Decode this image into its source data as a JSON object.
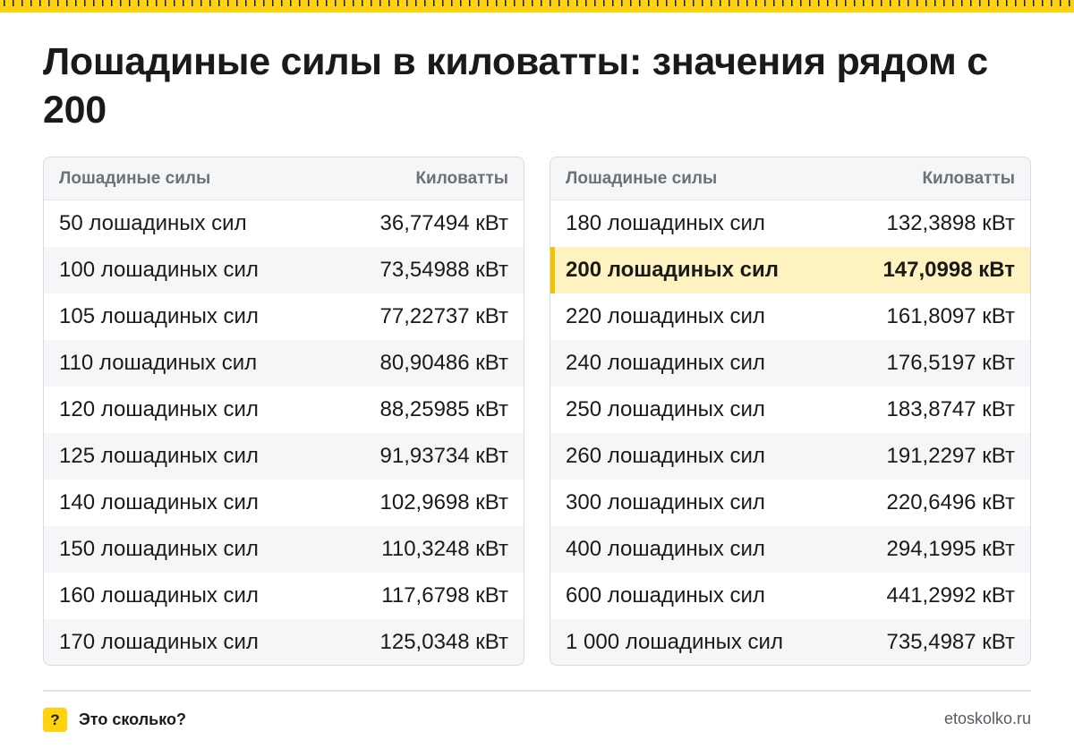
{
  "title": "Лошадиные силы в киловатты: значения рядом с 200",
  "table_headers": {
    "hp": "Лошадиные силы",
    "kw": "Киловатты"
  },
  "left_table": [
    {
      "hp": "50 лошадиных сил",
      "kw": "36,77494 кВт"
    },
    {
      "hp": "100 лошадиных сил",
      "kw": "73,54988 кВт"
    },
    {
      "hp": "105 лошадиных сил",
      "kw": "77,22737 кВт"
    },
    {
      "hp": "110 лошадиных сил",
      "kw": "80,90486 кВт"
    },
    {
      "hp": "120 лошадиных сил",
      "kw": "88,25985 кВт"
    },
    {
      "hp": "125 лошадиных сил",
      "kw": "91,93734 кВт"
    },
    {
      "hp": "140 лошадиных сил",
      "kw": "102,9698 кВт"
    },
    {
      "hp": "150 лошадиных сил",
      "kw": "110,3248 кВт"
    },
    {
      "hp": "160 лошадиных сил",
      "kw": "117,6798 кВт"
    },
    {
      "hp": "170 лошадиных сил",
      "kw": "125,0348 кВт"
    }
  ],
  "right_table": [
    {
      "hp": "180 лошадиных сил",
      "kw": "132,3898 кВт"
    },
    {
      "hp": "200 лошадиных сил",
      "kw": "147,0998 кВт",
      "highlighted": true
    },
    {
      "hp": "220 лошадиных сил",
      "kw": "161,8097 кВт"
    },
    {
      "hp": "240 лошадиных сил",
      "kw": "176,5197 кВт"
    },
    {
      "hp": "250 лошадиных сил",
      "kw": "183,8747 кВт"
    },
    {
      "hp": "260 лошадиных сил",
      "kw": "191,2297 кВт"
    },
    {
      "hp": "300 лошадиных сил",
      "kw": "220,6496 кВт"
    },
    {
      "hp": "400 лошадиных сил",
      "kw": "294,1995 кВт"
    },
    {
      "hp": "600 лошадиных сил",
      "kw": "441,2992 кВт"
    },
    {
      "hp": "1 000 лошадиных сил",
      "kw": "735,4987 кВт"
    }
  ],
  "footer": {
    "brand_icon": "?",
    "brand_name": "Это сколько?",
    "site": "etoskolko.ru"
  },
  "colors": {
    "accent": "#fdd20e",
    "highlight_bg": "#fdf2c0",
    "highlight_bar": "#f5c400",
    "alt_row": "#f5f6f8",
    "header_text": "#6b7079"
  }
}
